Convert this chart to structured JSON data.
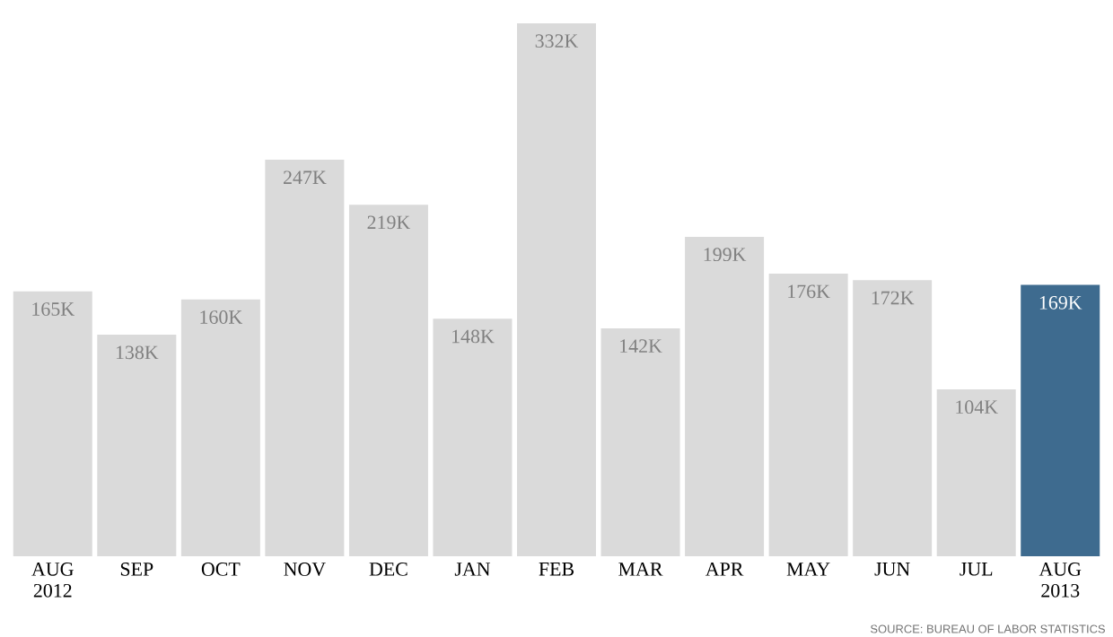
{
  "chart_data": {
    "type": "bar",
    "categories": [
      "AUG 2012",
      "SEP",
      "OCT",
      "NOV",
      "DEC",
      "JAN",
      "FEB",
      "MAR",
      "APR",
      "MAY",
      "JUN",
      "JUL",
      "AUG 2013"
    ],
    "values": [
      165,
      138,
      160,
      247,
      219,
      148,
      332,
      142,
      199,
      176,
      172,
      104,
      169
    ],
    "value_labels": [
      "165K",
      "138K",
      "160K",
      "247K",
      "219K",
      "148K",
      "332K",
      "142K",
      "199K",
      "176K",
      "172K",
      "104K",
      "169K"
    ],
    "colors": [
      "#dadada",
      "#dadada",
      "#dadada",
      "#dadada",
      "#dadada",
      "#dadada",
      "#dadada",
      "#dadada",
      "#dadada",
      "#dadada",
      "#dadada",
      "#dadada",
      "#3e6b8f"
    ],
    "tick_labels": "x",
    "annotations": [
      "SOURCE: BUREAU OF LABOR STATISTICS"
    ]
  }
}
